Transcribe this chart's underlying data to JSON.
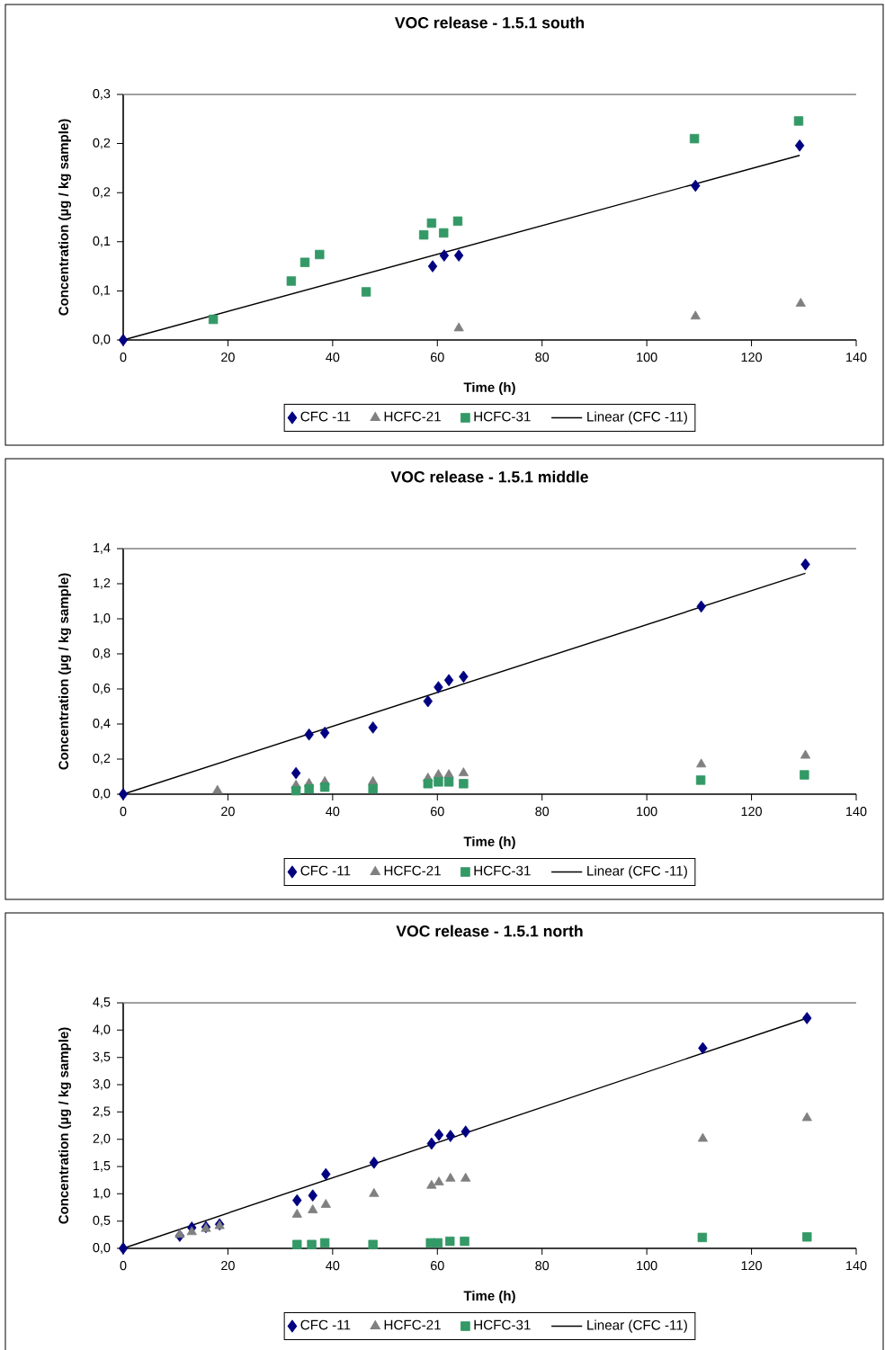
{
  "chart_data": [
    {
      "type": "scatter",
      "title": "VOC release  - 1.5.1 south",
      "xlabel": "Time (h)",
      "ylabel": "Concentration (µg / kg sample)",
      "xlim": [
        0,
        140
      ],
      "xticks": [
        0,
        20,
        40,
        60,
        80,
        100,
        120,
        140
      ],
      "ylim": [
        0,
        0.25
      ],
      "yticks": [
        {
          "value": 0,
          "label": "0,0"
        },
        {
          "value": 0.05,
          "label": "0,1"
        },
        {
          "value": 0.1,
          "label": "0,1"
        },
        {
          "value": 0.15,
          "label": "0,2"
        },
        {
          "value": 0.2,
          "label": "0,2"
        },
        {
          "value": 0.25,
          "label": "0,3"
        }
      ],
      "legend": "bottom",
      "series": [
        {
          "name": "CFC -11",
          "color": "#000080",
          "marker": "diamond",
          "x": [
            0,
            59.1,
            61.3,
            64.1,
            109.3,
            129.2
          ],
          "values": [
            0,
            0.075,
            0.086,
            0.086,
            0.157,
            0.198
          ]
        },
        {
          "name": "HCFC-21",
          "color": "#808080",
          "marker": "triangle",
          "x": [
            64.1,
            109.3,
            129.4
          ],
          "values": [
            0.012,
            0.024,
            0.037
          ]
        },
        {
          "name": "HCFC-31",
          "color": "#339966",
          "marker": "square",
          "x": [
            17.2,
            32.1,
            34.7,
            37.5,
            46.4,
            57.4,
            58.9,
            61.2,
            63.9,
            109.1,
            129.0
          ],
          "values": [
            0.021,
            0.06,
            0.079,
            0.087,
            0.049,
            0.107,
            0.119,
            0.109,
            0.121,
            0.205,
            0.223
          ]
        },
        {
          "name": "Linear (CFC -11)",
          "type": "line",
          "color": "#000000",
          "marker": "none",
          "x": [
            0,
            129.2
          ],
          "values": [
            0,
            0.188
          ]
        }
      ]
    },
    {
      "type": "scatter",
      "title": "VOC release  - 1.5.1 middle",
      "xlabel": "Time (h)",
      "ylabel": "Concentration (µg / kg sample)",
      "xlim": [
        0,
        140
      ],
      "xticks": [
        0,
        20,
        40,
        60,
        80,
        100,
        120,
        140
      ],
      "ylim": [
        0,
        1.4
      ],
      "yticks": [
        {
          "value": 0,
          "label": "0,0"
        },
        {
          "value": 0.2,
          "label": "0,2"
        },
        {
          "value": 0.4,
          "label": "0,4"
        },
        {
          "value": 0.6,
          "label": "0,6"
        },
        {
          "value": 0.8,
          "label": "0,8"
        },
        {
          "value": 1.0,
          "label": "1,0"
        },
        {
          "value": 1.2,
          "label": "1,2"
        },
        {
          "value": 1.4,
          "label": "1,4"
        }
      ],
      "legend": "bottom",
      "series": [
        {
          "name": "CFC -11",
          "color": "#000080",
          "marker": "diamond",
          "x": [
            0,
            33.0,
            35.5,
            38.5,
            47.7,
            58.2,
            60.2,
            62.2,
            65.0,
            110.4,
            130.3
          ],
          "values": [
            0,
            0.12,
            0.34,
            0.35,
            0.38,
            0.53,
            0.61,
            0.65,
            0.67,
            1.07,
            1.31
          ]
        },
        {
          "name": "HCFC-21",
          "color": "#808080",
          "marker": "triangle",
          "x": [
            18.0,
            33.0,
            35.5,
            38.5,
            47.7,
            58.2,
            60.2,
            62.2,
            65.0,
            110.4,
            130.3
          ],
          "values": [
            0.02,
            0.05,
            0.06,
            0.07,
            0.07,
            0.09,
            0.11,
            0.11,
            0.12,
            0.17,
            0.22
          ]
        },
        {
          "name": "HCFC-31",
          "color": "#339966",
          "marker": "square",
          "x": [
            33.0,
            35.5,
            38.5,
            47.7,
            58.2,
            60.2,
            62.2,
            65.0,
            110.3,
            130.1
          ],
          "values": [
            0.02,
            0.03,
            0.04,
            0.03,
            0.06,
            0.07,
            0.07,
            0.06,
            0.08,
            0.11
          ]
        },
        {
          "name": "Linear (CFC -11)",
          "type": "line",
          "color": "#000000",
          "marker": "none",
          "x": [
            0,
            130.3
          ],
          "values": [
            0,
            1.26
          ]
        }
      ]
    },
    {
      "type": "scatter",
      "title": "VOC release  - 1.5.1 north",
      "xlabel": "Time (h)",
      "ylabel": "Concentration (µg / kg sample)",
      "xlim": [
        0,
        140
      ],
      "xticks": [
        0,
        20,
        40,
        60,
        80,
        100,
        120,
        140
      ],
      "ylim": [
        0,
        4.5
      ],
      "yticks": [
        {
          "value": 0,
          "label": "0,0"
        },
        {
          "value": 0.5,
          "label": "0,5"
        },
        {
          "value": 1.0,
          "label": "1,0"
        },
        {
          "value": 1.5,
          "label": "1,5"
        },
        {
          "value": 2.0,
          "label": "2,0"
        },
        {
          "value": 2.5,
          "label": "2,5"
        },
        {
          "value": 3.0,
          "label": "3,0"
        },
        {
          "value": 3.5,
          "label": "3,5"
        },
        {
          "value": 4.0,
          "label": "4,0"
        },
        {
          "value": 4.5,
          "label": "4,5"
        }
      ],
      "legend": "bottom",
      "series": [
        {
          "name": "CFC -11",
          "color": "#000080",
          "marker": "diamond",
          "x": [
            0,
            10.8,
            13.1,
            15.8,
            18.4,
            33.2,
            36.2,
            38.7,
            47.9,
            58.9,
            60.3,
            62.5,
            65.4,
            110.7,
            130.6
          ],
          "values": [
            0,
            0.23,
            0.38,
            0.39,
            0.44,
            0.88,
            0.97,
            1.36,
            1.57,
            1.92,
            2.08,
            2.06,
            2.14,
            3.67,
            4.22
          ]
        },
        {
          "name": "HCFC-21",
          "color": "#808080",
          "marker": "triangle",
          "x": [
            10.8,
            13.1,
            15.8,
            18.4,
            33.2,
            36.2,
            38.7,
            47.9,
            58.9,
            60.3,
            62.5,
            65.4,
            110.7,
            130.6
          ],
          "values": [
            0.25,
            0.3,
            0.36,
            0.41,
            0.62,
            0.7,
            0.8,
            1.0,
            1.15,
            1.21,
            1.28,
            1.28,
            2.01,
            2.39
          ]
        },
        {
          "name": "HCFC-31",
          "color": "#339966",
          "marker": "square",
          "x": [
            33.2,
            36.0,
            38.5,
            47.7,
            58.7,
            60.1,
            62.4,
            65.2,
            110.6,
            130.6
          ],
          "values": [
            0.07,
            0.07,
            0.1,
            0.07,
            0.1,
            0.1,
            0.13,
            0.13,
            0.2,
            0.21
          ]
        },
        {
          "name": "Linear (CFC -11)",
          "type": "line",
          "color": "#000000",
          "marker": "none",
          "x": [
            0,
            130.6
          ],
          "values": [
            0,
            4.22
          ]
        }
      ]
    }
  ]
}
